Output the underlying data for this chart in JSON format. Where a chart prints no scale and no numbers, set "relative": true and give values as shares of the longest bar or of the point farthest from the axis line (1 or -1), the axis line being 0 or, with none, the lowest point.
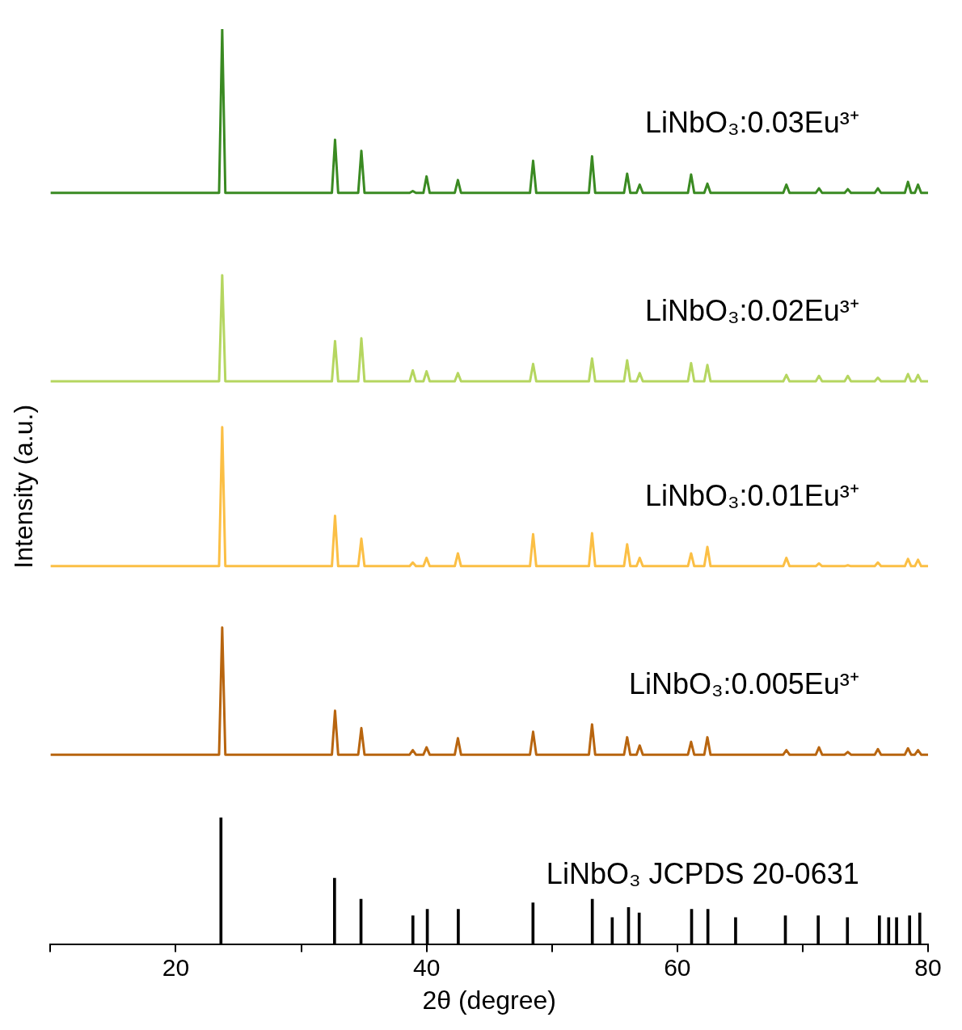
{
  "chart_data": {
    "type": "line",
    "xlabel": "2θ (degree)",
    "ylabel": "Intensity (a.u.)",
    "relative": true,
    "xlim": [
      10,
      80
    ],
    "xticks": [
      {
        "value": 10,
        "label": null
      },
      20,
      {
        "value": 30,
        "label": null
      },
      40,
      {
        "value": 50,
        "label": null
      },
      60,
      {
        "value": 70,
        "label": null
      },
      80
    ],
    "grid": false,
    "legend": false,
    "marker": "none",
    "line_style": "solid",
    "x": [
      10,
      23.45,
      23.7,
      23.95,
      32.45,
      32.7,
      32.95,
      34.55,
      34.8,
      35.05,
      38.65,
      38.9,
      39.15,
      39.75,
      40.0,
      40.25,
      42.25,
      42.5,
      42.75,
      48.25,
      48.5,
      48.75,
      52.95,
      53.2,
      53.45,
      55.75,
      56.0,
      56.25,
      56.75,
      57.0,
      57.25,
      60.85,
      61.1,
      61.35,
      62.15,
      62.4,
      62.65,
      68.45,
      68.7,
      68.95,
      71.05,
      71.3,
      71.55,
      73.35,
      73.6,
      73.85,
      75.75,
      76.0,
      76.25,
      78.15,
      78.4,
      78.65,
      78.95,
      79.2,
      79.45,
      80
    ],
    "series": [
      {
        "name": "LiNbO₃:0.03Eu³⁺",
        "color": "#3a8a22",
        "values": [
          0.821,
          0.821,
          1.0,
          0.821,
          0.821,
          0.879,
          0.821,
          0.821,
          0.867,
          0.821,
          0.821,
          0.823,
          0.821,
          0.821,
          0.839,
          0.821,
          0.821,
          0.835,
          0.821,
          0.821,
          0.856,
          0.821,
          0.821,
          0.861,
          0.821,
          0.821,
          0.842,
          0.821,
          0.821,
          0.83,
          0.821,
          0.821,
          0.841,
          0.821,
          0.821,
          0.831,
          0.821,
          0.821,
          0.83,
          0.821,
          0.821,
          0.826,
          0.821,
          0.821,
          0.825,
          0.821,
          0.821,
          0.826,
          0.821,
          0.821,
          0.833,
          0.821,
          0.821,
          0.83,
          0.821,
          0.821
        ]
      },
      {
        "name": "LiNbO₃:0.02Eu³⁺",
        "color": "#b5d660",
        "values": [
          0.615,
          0.615,
          0.731,
          0.615,
          0.615,
          0.659,
          0.615,
          0.615,
          0.662,
          0.615,
          0.615,
          0.627,
          0.615,
          0.615,
          0.626,
          0.615,
          0.615,
          0.624,
          0.615,
          0.615,
          0.634,
          0.615,
          0.615,
          0.64,
          0.615,
          0.615,
          0.638,
          0.615,
          0.615,
          0.624,
          0.615,
          0.615,
          0.635,
          0.615,
          0.615,
          0.633,
          0.615,
          0.615,
          0.622,
          0.615,
          0.615,
          0.621,
          0.615,
          0.615,
          0.621,
          0.615,
          0.615,
          0.619,
          0.615,
          0.615,
          0.623,
          0.615,
          0.615,
          0.622,
          0.615,
          0.615
        ]
      },
      {
        "name": "LiNbO₃:0.01Eu³⁺",
        "color": "#fbbf45",
        "values": [
          0.413,
          0.413,
          0.565,
          0.413,
          0.413,
          0.468,
          0.413,
          0.413,
          0.443,
          0.413,
          0.413,
          0.417,
          0.413,
          0.413,
          0.422,
          0.413,
          0.413,
          0.427,
          0.413,
          0.413,
          0.448,
          0.413,
          0.413,
          0.449,
          0.413,
          0.413,
          0.437,
          0.413,
          0.413,
          0.422,
          0.413,
          0.413,
          0.427,
          0.413,
          0.413,
          0.434,
          0.413,
          0.413,
          0.422,
          0.413,
          0.413,
          0.416,
          0.413,
          0.413,
          0.414,
          0.413,
          0.413,
          0.417,
          0.413,
          0.413,
          0.421,
          0.413,
          0.413,
          0.42,
          0.413,
          0.413
        ]
      },
      {
        "name": "LiNbO₃:0.005Eu³⁺",
        "color": "#b8650f",
        "values": [
          0.207,
          0.207,
          0.346,
          0.207,
          0.207,
          0.255,
          0.207,
          0.207,
          0.236,
          0.207,
          0.207,
          0.212,
          0.207,
          0.207,
          0.215,
          0.207,
          0.207,
          0.225,
          0.207,
          0.207,
          0.232,
          0.207,
          0.207,
          0.24,
          0.207,
          0.207,
          0.226,
          0.207,
          0.207,
          0.217,
          0.207,
          0.207,
          0.221,
          0.207,
          0.207,
          0.226,
          0.207,
          0.207,
          0.212,
          0.207,
          0.207,
          0.215,
          0.207,
          0.207,
          0.21,
          0.207,
          0.207,
          0.213,
          0.207,
          0.207,
          0.214,
          0.207,
          0.207,
          0.212,
          0.207,
          0.207
        ]
      },
      {
        "name": "LiNbO₃ JCPDS 20-0631",
        "type": "bar",
        "color": "#000000",
        "x": [
          23.6,
          32.66,
          34.77,
          38.91,
          40.06,
          42.53,
          48.49,
          53.22,
          54.81,
          56.11,
          56.96,
          61.14,
          62.44,
          64.65,
          68.62,
          71.24,
          73.57,
          76.12,
          76.86,
          77.49,
          78.53,
          79.34
        ],
        "values": [
          0.138,
          0.072,
          0.049,
          0.031,
          0.038,
          0.038,
          0.045,
          0.049,
          0.029,
          0.04,
          0.034,
          0.038,
          0.038,
          0.029,
          0.031,
          0.031,
          0.029,
          0.031,
          0.029,
          0.029,
          0.031,
          0.034
        ]
      }
    ]
  }
}
